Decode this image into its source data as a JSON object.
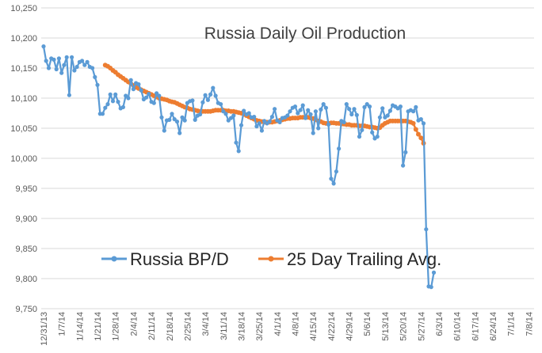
{
  "chart_data": {
    "type": "line",
    "title": "Russia Daily Oil Production",
    "xlabel": "",
    "ylabel": "",
    "ylim": [
      9750,
      10250
    ],
    "y_ticks": [
      "10,250",
      "10,200",
      "10,150",
      "10,100",
      "10,050",
      "10,000",
      "9,950",
      "9,900",
      "9,850",
      "9,800",
      "9,750"
    ],
    "x_start": "12/31/13",
    "x_tick_labels": [
      "12/31/13",
      "1/7/14",
      "1/14/14",
      "1/21/14",
      "1/28/14",
      "2/4/14",
      "2/11/14",
      "2/18/14",
      "2/25/14",
      "3/4/14",
      "3/11/14",
      "3/18/14",
      "3/25/14",
      "4/1/14",
      "4/8/14",
      "4/15/14",
      "4/22/14",
      "4/29/14",
      "5/6/14",
      "5/13/14",
      "5/20/14",
      "5/27/14",
      "6/3/14",
      "6/10/14",
      "6/17/14",
      "6/24/14",
      "7/1/14",
      "7/8/14"
    ],
    "grid": true,
    "legend_position": "bottom-left",
    "series": [
      {
        "name": "Russia BP/D",
        "color": "#5B9BD5",
        "start_index": 0,
        "values": [
          10186,
          10162,
          10150,
          10166,
          10164,
          10148,
          10166,
          10142,
          10155,
          10168,
          10105,
          10168,
          10146,
          10152,
          10160,
          10162,
          10155,
          10160,
          10152,
          10150,
          10135,
          10122,
          10074,
          10074,
          10084,
          10090,
          10106,
          10095,
          10106,
          10094,
          10083,
          10085,
          10104,
          10100,
          10130,
          10115,
          10125,
          10123,
          10113,
          10098,
          10101,
          10107,
          10094,
          10092,
          10108,
          10104,
          10068,
          10046,
          10063,
          10064,
          10074,
          10065,
          10061,
          10042,
          10068,
          10063,
          10092,
          10095,
          10096,
          10064,
          10071,
          10073,
          10093,
          10105,
          10097,
          10106,
          10117,
          10104,
          10092,
          10090,
          10078,
          10074,
          10063,
          10067,
          10071,
          10026,
          10012,
          10055,
          10079,
          10073,
          10075,
          10068,
          10069,
          10053,
          10058,
          10046,
          10062,
          10058,
          10061,
          10069,
          10082,
          10063,
          10060,
          10067,
          10068,
          10071,
          10078,
          10084,
          10086,
          10075,
          10080,
          10088,
          10067,
          10080,
          10073,
          10042,
          10078,
          10050,
          10081,
          10090,
          10084,
          10056,
          9966,
          9958,
          9978,
          10016,
          10062,
          10060,
          10090,
          10082,
          10073,
          10082,
          10072,
          10036,
          10047,
          10085,
          10090,
          10086,
          10043,
          10033,
          10036,
          10068,
          10083,
          10068,
          10071,
          10079,
          10088,
          10086,
          10083,
          10086,
          9988,
          10010,
          10078,
          10080,
          10078,
          10085,
          10063,
          10065,
          10058,
          9882,
          9787,
          9786,
          9810
        ]
      },
      {
        "name": "25 Day Trailing Avg.",
        "color": "#ED7D31",
        "start_index": 24,
        "values": [
          10155,
          10153,
          10150,
          10146,
          10143,
          10139,
          10136,
          10133,
          10130,
          10127,
          10124,
          10121,
          10118,
          10116,
          10114,
          10112,
          10110,
          10108,
          10106,
          10104,
          10102,
          10100,
          10099,
          10098,
          10097,
          10095,
          10094,
          10093,
          10091,
          10089,
          10087,
          10085,
          10084,
          10082,
          10081,
          10080,
          10079,
          10078,
          10078,
          10078,
          10078,
          10078,
          10079,
          10080,
          10080,
          10080,
          10080,
          10079,
          10079,
          10078,
          10078,
          10077,
          10076,
          10075,
          10073,
          10071,
          10069,
          10067,
          10065,
          10063,
          10062,
          10061,
          10060,
          10060,
          10060,
          10060,
          10061,
          10062,
          10063,
          10064,
          10065,
          10066,
          10066,
          10067,
          10067,
          10067,
          10068,
          10068,
          10068,
          10068,
          10067,
          10066,
          10064,
          10062,
          10061,
          10059,
          10058,
          10058,
          10059,
          10059,
          10058,
          10058,
          10057,
          10057,
          10056,
          10056,
          10055,
          10055,
          10055,
          10054,
          10054,
          10054,
          10053,
          10052,
          10052,
          10051,
          10050,
          10051,
          10055,
          10058,
          10060,
          10062,
          10062,
          10062,
          10062,
          10062,
          10062,
          10062,
          10061,
          10060,
          10058,
          10048,
          10040,
          10034,
          10025
        ]
      }
    ]
  }
}
